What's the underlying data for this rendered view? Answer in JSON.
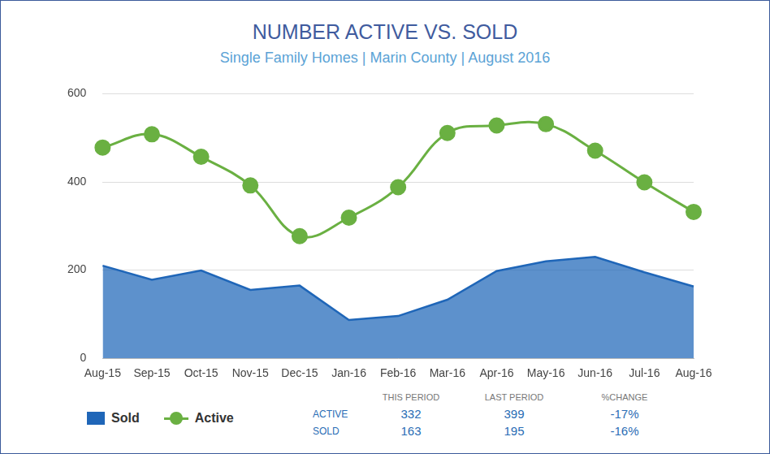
{
  "chart_data": {
    "type": "line",
    "title": "NUMBER ACTIVE VS. SOLD",
    "subtitle": "Single Family Homes | Marin County | August 2016",
    "categories": [
      "Aug-15",
      "Sep-15",
      "Oct-15",
      "Nov-15",
      "Dec-15",
      "Jan-16",
      "Feb-16",
      "Mar-16",
      "Apr-16",
      "May-16",
      "Jun-16",
      "Jul-16",
      "Aug-16"
    ],
    "series": [
      {
        "name": "Sold",
        "type": "area",
        "color": "#1f66b8",
        "line_style": "solid",
        "values": [
          210,
          178,
          199,
          155,
          165,
          87,
          96,
          133,
          198,
          220,
          230,
          195,
          163
        ]
      },
      {
        "name": "Active",
        "type": "line",
        "color": "#6ab042",
        "marker": "circle",
        "line_style": "smooth",
        "values": [
          478,
          508,
          457,
          392,
          277,
          319,
          388,
          511,
          528,
          531,
          471,
          399,
          332
        ]
      }
    ],
    "ylim": [
      0,
      600
    ],
    "yticks": [
      0,
      200,
      400,
      600
    ],
    "grid": true,
    "legend": "lower left"
  },
  "summary_table": {
    "headers": [
      "THIS PERIOD",
      "LAST PERIOD",
      "%CHANGE"
    ],
    "rows": [
      {
        "label": "ACTIVE",
        "values": [
          "332",
          "399",
          "-17%"
        ]
      },
      {
        "label": "SOLD",
        "values": [
          "163",
          "195",
          "-16%"
        ]
      }
    ]
  }
}
